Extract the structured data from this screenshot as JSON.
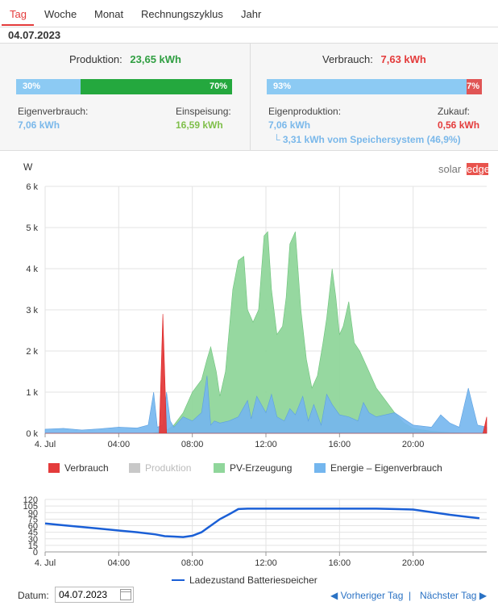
{
  "tabs": [
    {
      "label": "Tag",
      "active": true
    },
    {
      "label": "Woche"
    },
    {
      "label": "Monat"
    },
    {
      "label": "Rechnungszyklus"
    },
    {
      "label": "Jahr"
    }
  ],
  "date": "04.07.2023",
  "production": {
    "label": "Produktion:",
    "value": "23,65 kWh",
    "self_pct_label": "30%",
    "feed_pct_label": "70%",
    "self_fraction": 0.3,
    "self_label": "Eigenverbrauch:",
    "self_value": "7,06 kWh",
    "feed_label": "Einspeisung:",
    "feed_value": "16,59 kWh"
  },
  "consumption": {
    "label": "Verbrauch:",
    "value": "7,63 kWh",
    "own_pct_label": "93%",
    "buy_pct_label": "7%",
    "own_fraction": 0.93,
    "own_label": "Eigenproduktion:",
    "own_value": "7,06 kWh",
    "buy_label": "Zukauf:",
    "buy_value": "0,56 kWh",
    "battery_note": "└ 3,31 kWh vom Speichersystem (46,9%)"
  },
  "brand": {
    "left": "solar",
    "right": "edge"
  },
  "chart_data": [
    {
      "type": "area",
      "ylabel": "W",
      "ylim": [
        0,
        6000
      ],
      "yticks": [
        0,
        1000,
        2000,
        3000,
        4000,
        5000,
        6000
      ],
      "ytick_labels": [
        "0 k",
        "1 k",
        "2 k",
        "3 k",
        "4 k",
        "5 k",
        "6 k"
      ],
      "xlim": [
        0,
        24
      ],
      "xticks": [
        0,
        4,
        8,
        12,
        16,
        20
      ],
      "xtick_labels": [
        "4. Jul",
        "04:00",
        "08:00",
        "12:00",
        "16:00",
        "20:00"
      ],
      "grid": true,
      "legend_position": "bottom",
      "series": [
        {
          "name": "PV-Erzeugung",
          "color": "#90d69b",
          "x": [
            0,
            5.8,
            6.3,
            6.7,
            7.0,
            7.5,
            8.0,
            8.5,
            8.8,
            9.0,
            9.3,
            9.5,
            9.8,
            10.2,
            10.5,
            10.8,
            11.0,
            11.3,
            11.6,
            11.9,
            12.1,
            12.3,
            12.6,
            12.9,
            13.1,
            13.3,
            13.6,
            13.9,
            14.2,
            14.5,
            14.8,
            15.1,
            15.3,
            15.6,
            15.8,
            16.0,
            16.2,
            16.5,
            16.8,
            17.1,
            17.5,
            18.0,
            18.5,
            19.0,
            19.5,
            20.0,
            21.0,
            22.0,
            23.0,
            24.0
          ],
          "values": [
            0,
            0,
            50,
            100,
            200,
            500,
            1000,
            1300,
            1800,
            2100,
            1500,
            900,
            1500,
            3500,
            4200,
            4300,
            3000,
            2700,
            3000,
            4800,
            4900,
            3500,
            2400,
            2600,
            3300,
            4600,
            4900,
            3000,
            1800,
            1100,
            1400,
            2200,
            2800,
            4000,
            3300,
            2400,
            2600,
            3200,
            2200,
            2000,
            1600,
            1100,
            800,
            500,
            250,
            120,
            50,
            20,
            0,
            0
          ]
        },
        {
          "name": "Energie - Eigenverbrauch",
          "color": "#74b6ee",
          "x": [
            0,
            1.0,
            2.0,
            3.0,
            4.0,
            5.0,
            5.6,
            5.9,
            6.1,
            6.4,
            6.6,
            6.8,
            7.0,
            7.5,
            8.0,
            8.5,
            8.8,
            9.0,
            9.2,
            9.5,
            10.0,
            10.5,
            11.0,
            11.2,
            11.5,
            12.0,
            12.3,
            12.6,
            13.0,
            13.3,
            13.6,
            14.0,
            14.3,
            14.6,
            15.0,
            15.3,
            15.6,
            16.0,
            16.5,
            17.0,
            17.3,
            17.6,
            18.0,
            19.0,
            20.0,
            21.0,
            21.5,
            22.0,
            22.5,
            23.0,
            23.5,
            24.0
          ],
          "values": [
            100,
            120,
            80,
            110,
            150,
            130,
            200,
            1000,
            150,
            200,
            1000,
            300,
            150,
            400,
            300,
            500,
            1400,
            200,
            300,
            250,
            300,
            400,
            800,
            350,
            900,
            500,
            950,
            400,
            300,
            600,
            450,
            900,
            300,
            700,
            200,
            950,
            700,
            450,
            400,
            300,
            750,
            500,
            400,
            500,
            200,
            150,
            450,
            250,
            150,
            1100,
            200,
            150
          ]
        },
        {
          "name": "Verbrauch",
          "color": "#e43b3b",
          "x": [
            0,
            6.0,
            6.2,
            6.4,
            6.6,
            6.8,
            7.0,
            23.8,
            24.0
          ],
          "values": [
            0,
            0,
            0,
            2900,
            0,
            0,
            0,
            0,
            400
          ]
        },
        {
          "name": "Produktion",
          "color": "#c8c8c8",
          "values": []
        }
      ]
    },
    {
      "type": "line",
      "ylim": [
        0,
        120
      ],
      "yticks": [
        0,
        15,
        30,
        45,
        60,
        75,
        90,
        105,
        120
      ],
      "ytick_labels": [
        "0",
        "15",
        "30",
        "45",
        "60",
        "75",
        "90",
        "105",
        "120"
      ],
      "xlim": [
        0,
        24
      ],
      "xticks": [
        0,
        4,
        8,
        12,
        16,
        20
      ],
      "xtick_labels": [
        "4. Jul",
        "04:00",
        "08:00",
        "12:00",
        "16:00",
        "20:00"
      ],
      "grid": true,
      "series": [
        {
          "name": "Ladezustand Batteriespeicher",
          "color": "#1a5fd6",
          "x": [
            0,
            1,
            2,
            3,
            4,
            5,
            6,
            6.5,
            7,
            7.5,
            8,
            8.5,
            9,
            9.5,
            10,
            10.5,
            11,
            12,
            13,
            14,
            15,
            16,
            17,
            18,
            19,
            20,
            21,
            22,
            23,
            23.6
          ],
          "values": [
            65,
            61,
            57,
            53,
            49,
            45,
            40,
            36,
            35,
            34,
            37,
            45,
            60,
            75,
            86,
            98,
            99,
            99,
            99,
            99,
            99,
            99,
            99,
            99,
            98,
            97,
            91,
            85,
            80,
            77
          ]
        }
      ]
    }
  ],
  "legend": [
    {
      "label": "Verbrauch",
      "color": "#e43b3b",
      "dimmed": false
    },
    {
      "label": "Produktion",
      "color": "#c8c8c8",
      "dimmed": true
    },
    {
      "label": "PV-Erzeugung",
      "color": "#90d69b",
      "dimmed": false
    },
    {
      "label": "Energie – Eigenverbrauch",
      "color": "#74b6ee",
      "dimmed": false
    }
  ],
  "footer": {
    "date_label": "Datum:",
    "date_value": "04.07.2023",
    "prev_label": "Vorheriger Tag",
    "separator": "|",
    "next_label": "Nächster Tag"
  }
}
